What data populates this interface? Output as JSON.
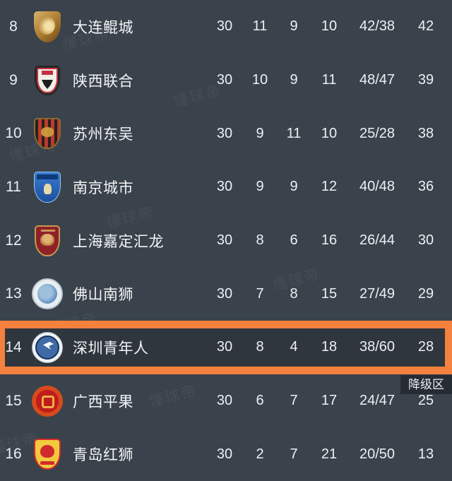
{
  "app": {
    "watermark_text": "懂球帝"
  },
  "labels": {
    "relegation_zone": "降级区"
  },
  "colors": {
    "background": "#3A424B",
    "highlight_orange": "#F5813E",
    "highlight_row_bg": "#2F363E",
    "relegation_chip_bg": "#262C33",
    "text": "#F2F4F6"
  },
  "table": {
    "rows": [
      {
        "rank": "8",
        "team": "大连鲲城",
        "played": "30",
        "wins": "11",
        "draws": "9",
        "losses": "10",
        "goals": "42/38",
        "points": "42",
        "crest": "c8",
        "highlighted": false
      },
      {
        "rank": "9",
        "team": "陕西联合",
        "played": "30",
        "wins": "10",
        "draws": "9",
        "losses": "11",
        "goals": "48/47",
        "points": "39",
        "crest": "c9",
        "highlighted": false
      },
      {
        "rank": "10",
        "team": "苏州东吴",
        "played": "30",
        "wins": "9",
        "draws": "11",
        "losses": "10",
        "goals": "25/28",
        "points": "38",
        "crest": "c10",
        "highlighted": false
      },
      {
        "rank": "11",
        "team": "南京城市",
        "played": "30",
        "wins": "9",
        "draws": "9",
        "losses": "12",
        "goals": "40/48",
        "points": "36",
        "crest": "c11",
        "highlighted": false
      },
      {
        "rank": "12",
        "team": "上海嘉定汇龙",
        "played": "30",
        "wins": "8",
        "draws": "6",
        "losses": "16",
        "goals": "26/44",
        "points": "30",
        "crest": "c12",
        "highlighted": false
      },
      {
        "rank": "13",
        "team": "佛山南狮",
        "played": "30",
        "wins": "7",
        "draws": "8",
        "losses": "15",
        "goals": "27/49",
        "points": "29",
        "crest": "c13",
        "highlighted": false
      },
      {
        "rank": "14",
        "team": "深圳青年人",
        "played": "30",
        "wins": "8",
        "draws": "4",
        "losses": "18",
        "goals": "38/60",
        "points": "28",
        "crest": "c14",
        "highlighted": true
      },
      {
        "rank": "15",
        "team": "广西平果",
        "played": "30",
        "wins": "6",
        "draws": "7",
        "losses": "17",
        "goals": "24/47",
        "points": "25",
        "crest": "c15",
        "highlighted": false
      },
      {
        "rank": "16",
        "team": "青岛红狮",
        "played": "30",
        "wins": "2",
        "draws": "7",
        "losses": "21",
        "goals": "20/50",
        "points": "13",
        "crest": "c16",
        "highlighted": false
      }
    ]
  }
}
